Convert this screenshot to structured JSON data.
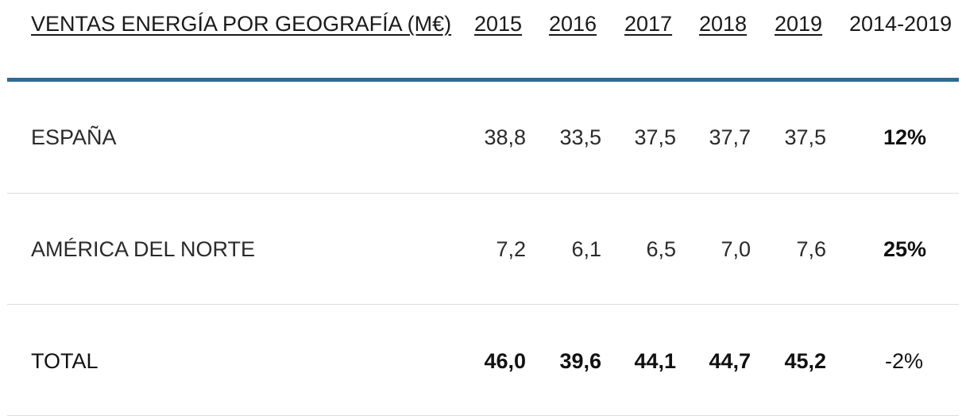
{
  "table": {
    "header": {
      "title": "VENTAS ENERGÍA POR GEOGRAFÍA (M€)",
      "years": [
        "2015",
        "2016",
        "2017",
        "2018",
        "2019"
      ],
      "change": "2014-2019"
    },
    "rows": [
      {
        "label": "ESPAÑA",
        "values": [
          "38,8",
          "33,5",
          "37,5",
          "37,7",
          "37,5"
        ],
        "change": "12%"
      },
      {
        "label": "AMÉRICA DEL NORTE",
        "values": [
          "7,2",
          "6,1",
          "6,5",
          "7,0",
          "7,6"
        ],
        "change": "25%"
      },
      {
        "label": "TOTAL",
        "values": [
          "46,0",
          "39,6",
          "44,1",
          "44,7",
          "45,2"
        ],
        "change": "-2%"
      }
    ]
  },
  "colors": {
    "accent_rule": "#2e6b93",
    "divider": "#dcdcdc",
    "text": "#1a1a1a"
  }
}
